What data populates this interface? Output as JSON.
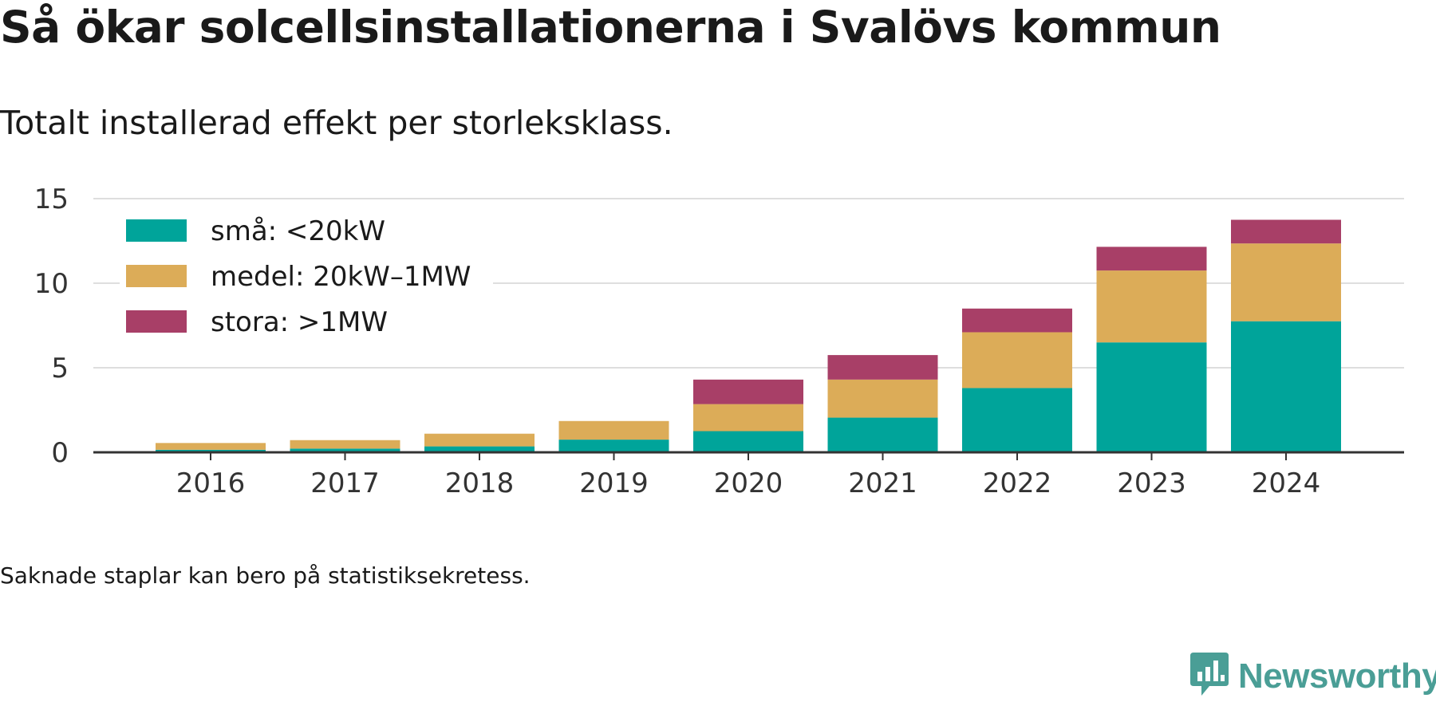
{
  "title": "Så ökar solcellsinstallationerna i Svalövs kommun",
  "subtitle": "Totalt installerad effekt per storleksklass.",
  "footnote": "Saknade staplar kan bero på statistiksekretess.",
  "brand": {
    "name": "Newsworthy",
    "icon": "newsworthy-logo-icon"
  },
  "colors": {
    "sma": "#00a49a",
    "medel": "#dcac58",
    "stora": "#a83f67",
    "grid": "#dedede",
    "axis": "#333333",
    "brand": "#4a9e96"
  },
  "chart_data": {
    "type": "bar",
    "stacked": true,
    "categories": [
      "2016",
      "2017",
      "2018",
      "2019",
      "2020",
      "2021",
      "2022",
      "2023",
      "2024"
    ],
    "series": [
      {
        "name": "små: <20kW",
        "color": "#00a49a",
        "values": [
          0.15,
          0.22,
          0.35,
          0.75,
          1.25,
          2.05,
          3.8,
          6.5,
          7.75
        ]
      },
      {
        "name": "medel: 20kW–1MW",
        "color": "#dcac58",
        "values": [
          0.4,
          0.5,
          0.75,
          1.1,
          1.6,
          2.25,
          3.3,
          4.25,
          4.6
        ]
      },
      {
        "name": "stora: >1MW",
        "color": "#a83f67",
        "values": [
          0,
          0,
          0,
          0,
          1.45,
          1.45,
          1.4,
          1.4,
          1.4
        ]
      }
    ],
    "yticks": [
      0,
      5,
      10,
      15
    ],
    "ylim": [
      0,
      15
    ],
    "grid": true,
    "legend": "top-left",
    "xlabel": "",
    "ylabel": ""
  }
}
